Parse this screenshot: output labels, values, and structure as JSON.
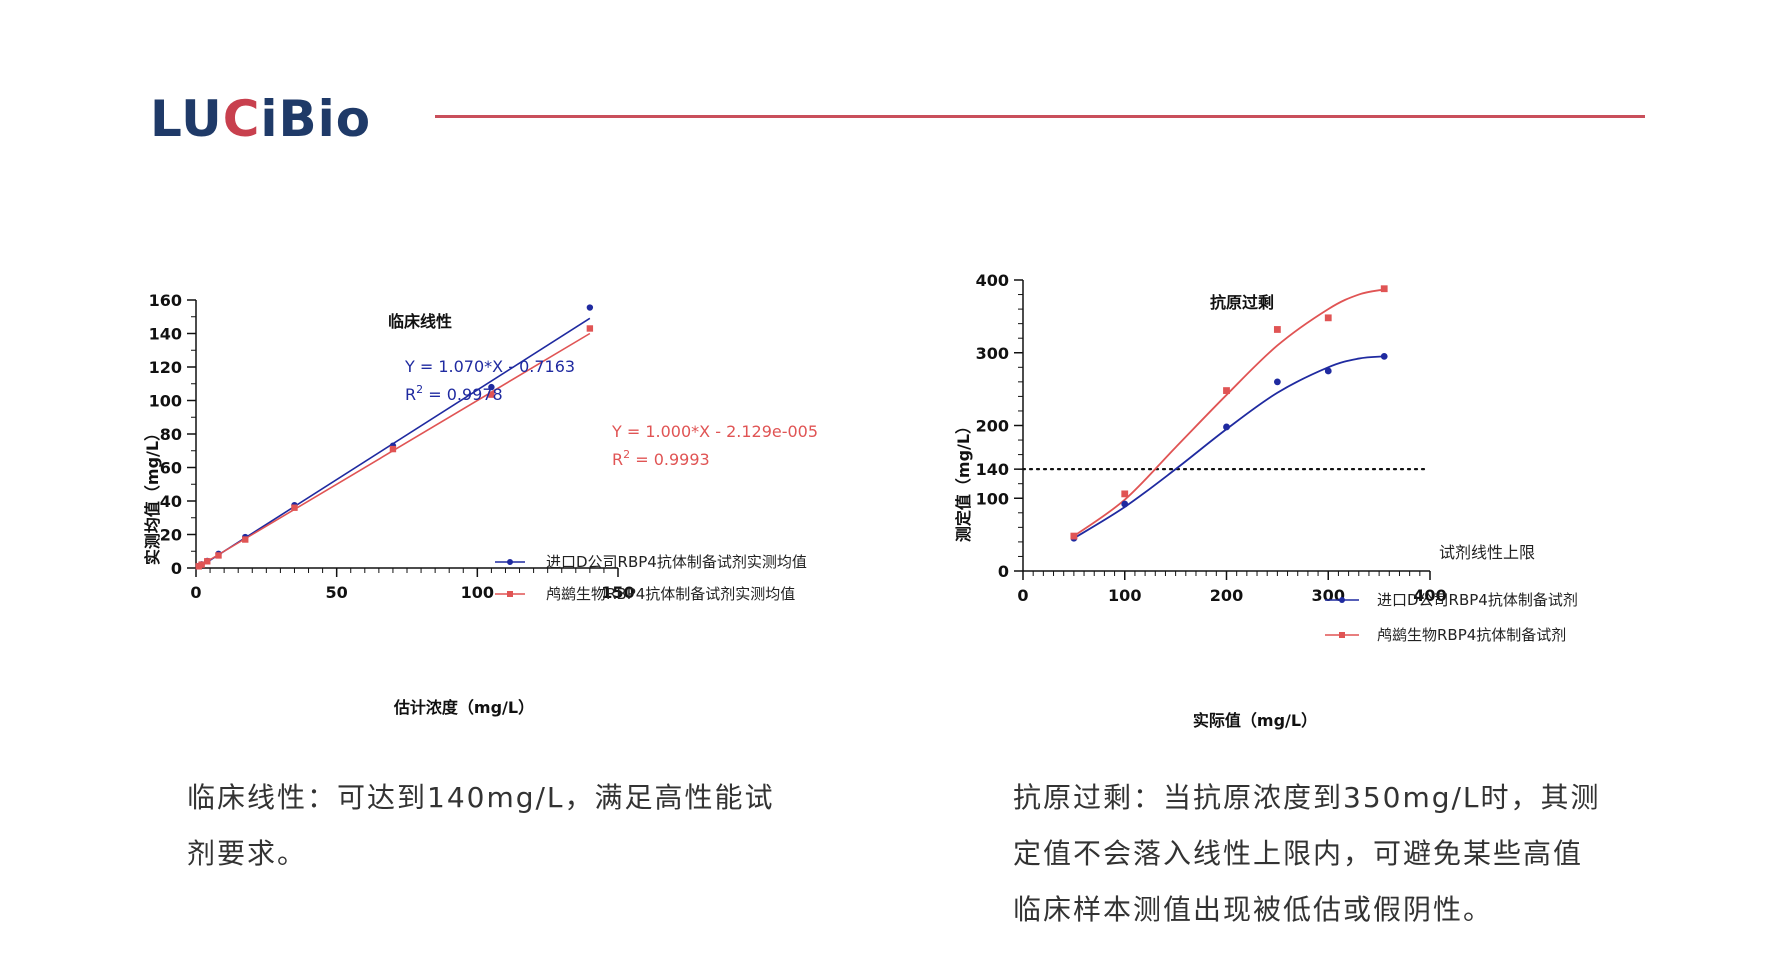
{
  "logo": {
    "text_a": "LU",
    "text_accent": "C",
    "text_b": "iBio"
  },
  "colors": {
    "blue": "#1f2aa0",
    "red": "#e05454",
    "rule": "#c94f5b"
  },
  "chart_data": [
    {
      "type": "scatter",
      "title": "临床线性",
      "xlabel": "估计浓度（mg/L）",
      "ylabel": "实测均值（mg/L）",
      "xlim": [
        0,
        150
      ],
      "ylim": [
        0,
        160
      ],
      "xticks": [
        0,
        50,
        100,
        150
      ],
      "yticks": [
        0,
        20,
        40,
        60,
        80,
        100,
        120,
        140,
        160
      ],
      "legend_position": "center-right",
      "series": [
        {
          "name": "进口D公司RBP4抗体制备试剂实测均值",
          "color": "#1f2aa0",
          "marker": "circle",
          "x": [
            1,
            2,
            4,
            8,
            17.5,
            35,
            70,
            105,
            140
          ],
          "y": [
            1.2,
            2.2,
            4.2,
            8.5,
            18.5,
            37.5,
            73,
            108,
            155.5
          ],
          "fit": {
            "slope": 1.07,
            "intercept": -0.7163,
            "x_range": [
              0,
              140
            ]
          },
          "equation": "Y = 1.070*X - 0.7163",
          "r2_label": "R",
          "r2_value": " = 0.9978"
        },
        {
          "name": "鸬鹚生物RBP4抗体制备试剂实测均值",
          "color": "#e05454",
          "marker": "square",
          "x": [
            1,
            2,
            4,
            8,
            17.5,
            35,
            70,
            105,
            140
          ],
          "y": [
            1,
            2,
            4,
            7.5,
            17,
            36,
            71,
            103.5,
            143
          ],
          "fit": {
            "slope": 1.0,
            "intercept": -2.129e-05,
            "x_range": [
              0,
              140
            ]
          },
          "equation": "Y = 1.000*X - 2.129e-005",
          "r2_label": "R",
          "r2_value": " = 0.9993"
        }
      ]
    },
    {
      "type": "scatter",
      "title": "抗原过剩",
      "xlabel": "实际值（mg/L）",
      "ylabel": "测定值（mg/L）",
      "xlim": [
        0,
        400
      ],
      "ylim": [
        0,
        400
      ],
      "xticks": [
        0,
        100,
        200,
        300,
        400
      ],
      "yticks": [
        0,
        100,
        140,
        200,
        300,
        400
      ],
      "legend_position": "bottom-right",
      "reference_line": {
        "y": 140,
        "label": "试剂线性上限",
        "style": "dotted"
      },
      "series": [
        {
          "name": "进口D公司RBP4抗体制备试剂",
          "color": "#1f2aa0",
          "marker": "circle",
          "x": [
            50,
            100,
            200,
            250,
            300,
            355
          ],
          "y": [
            45,
            92,
            198,
            260,
            275,
            295
          ],
          "curve": [
            [
              50,
              45
            ],
            [
              100,
              88
            ],
            [
              150,
              140
            ],
            [
              200,
              195
            ],
            [
              250,
              245
            ],
            [
              300,
              280
            ],
            [
              330,
              292
            ],
            [
              355,
              295
            ]
          ]
        },
        {
          "name": "鸬鹚生物RBP4抗体制备试剂",
          "color": "#e05454",
          "marker": "square",
          "x": [
            50,
            100,
            200,
            250,
            300,
            355
          ],
          "y": [
            48,
            106,
            248,
            332,
            348,
            388
          ],
          "curve": [
            [
              50,
              48
            ],
            [
              100,
              98
            ],
            [
              150,
              170
            ],
            [
              200,
              242
            ],
            [
              250,
              310
            ],
            [
              300,
              360
            ],
            [
              330,
              380
            ],
            [
              355,
              387
            ]
          ]
        }
      ]
    }
  ],
  "captions": {
    "left_line1": "临床线性：可达到140mg/L，满足高性能试",
    "left_line2": "剂要求。",
    "right_line1": "抗原过剩：当抗原浓度到350mg/L时，其测",
    "right_line2": "定值不会落入线性上限内，可避免某些高值",
    "right_line3": "临床样本测值出现被低估或假阴性。"
  }
}
